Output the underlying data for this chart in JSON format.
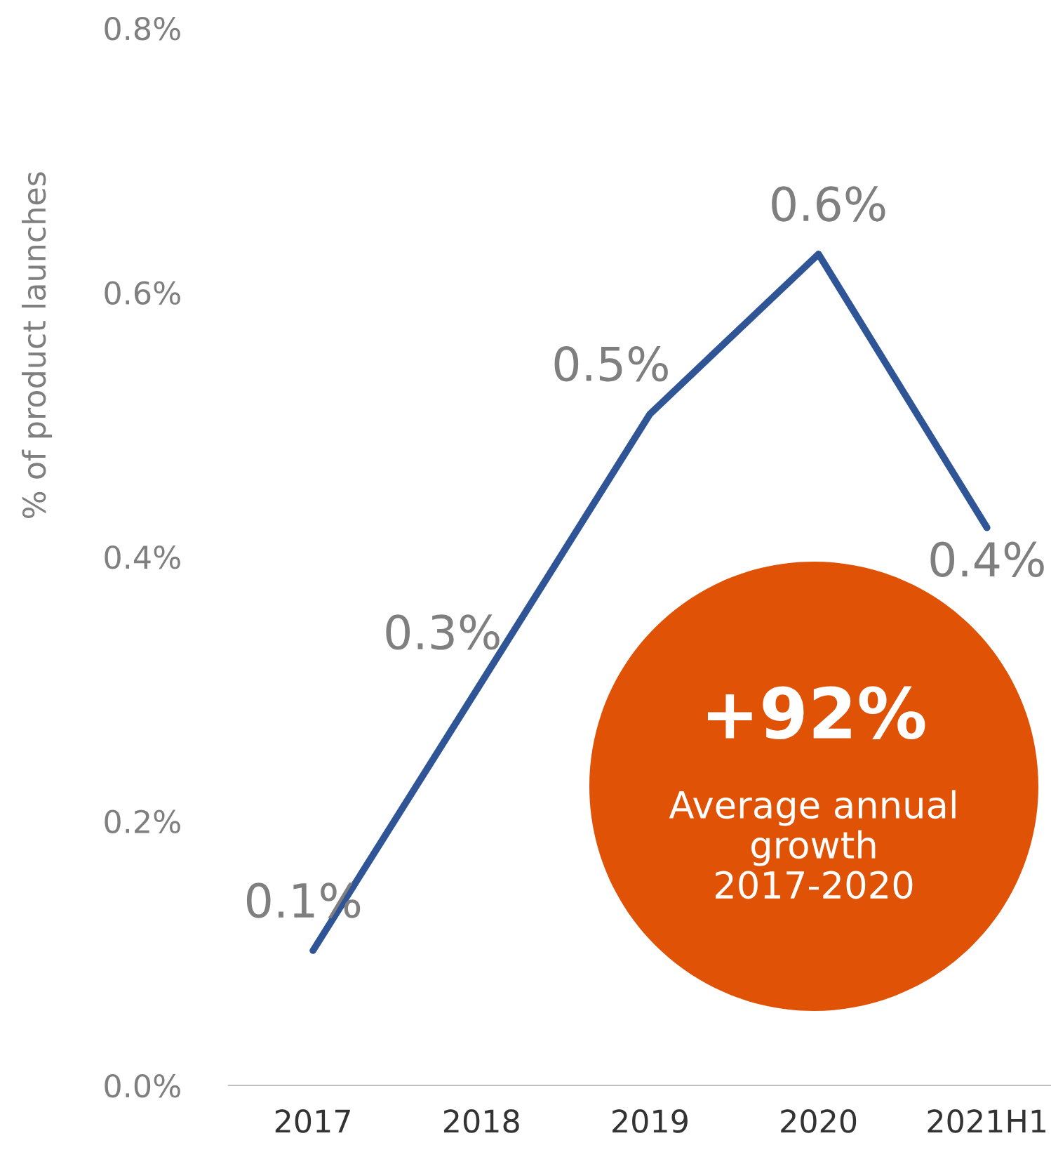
{
  "chart_data": {
    "type": "line",
    "ylabel": "% of product launches",
    "categories": [
      "2017",
      "2018",
      "2019",
      "2020",
      "2021H1"
    ],
    "series": [
      {
        "color": "#2f5597",
        "values": [
          0.102,
          0.305,
          0.508,
          0.629,
          0.422
        ],
        "value_labels": [
          "0.1%",
          "0.3%",
          "0.5%",
          "0.6%",
          "0.4%"
        ]
      }
    ],
    "ylim": [
      0,
      0.8
    ],
    "yticks": [
      {
        "value": 0,
        "label": "0.0%"
      },
      {
        "value": 0.2,
        "label": "0.2%"
      },
      {
        "value": 0.4,
        "label": "0.4%"
      },
      {
        "value": 0.6,
        "label": "0.6%"
      },
      {
        "value": 0.8,
        "label": "0.8%"
      }
    ],
    "grid": false,
    "legend": false,
    "marker": "none",
    "line_style": "solid",
    "annotations": [
      "+92%",
      "Average annual\ngrowth\n2017-2020"
    ]
  }
}
